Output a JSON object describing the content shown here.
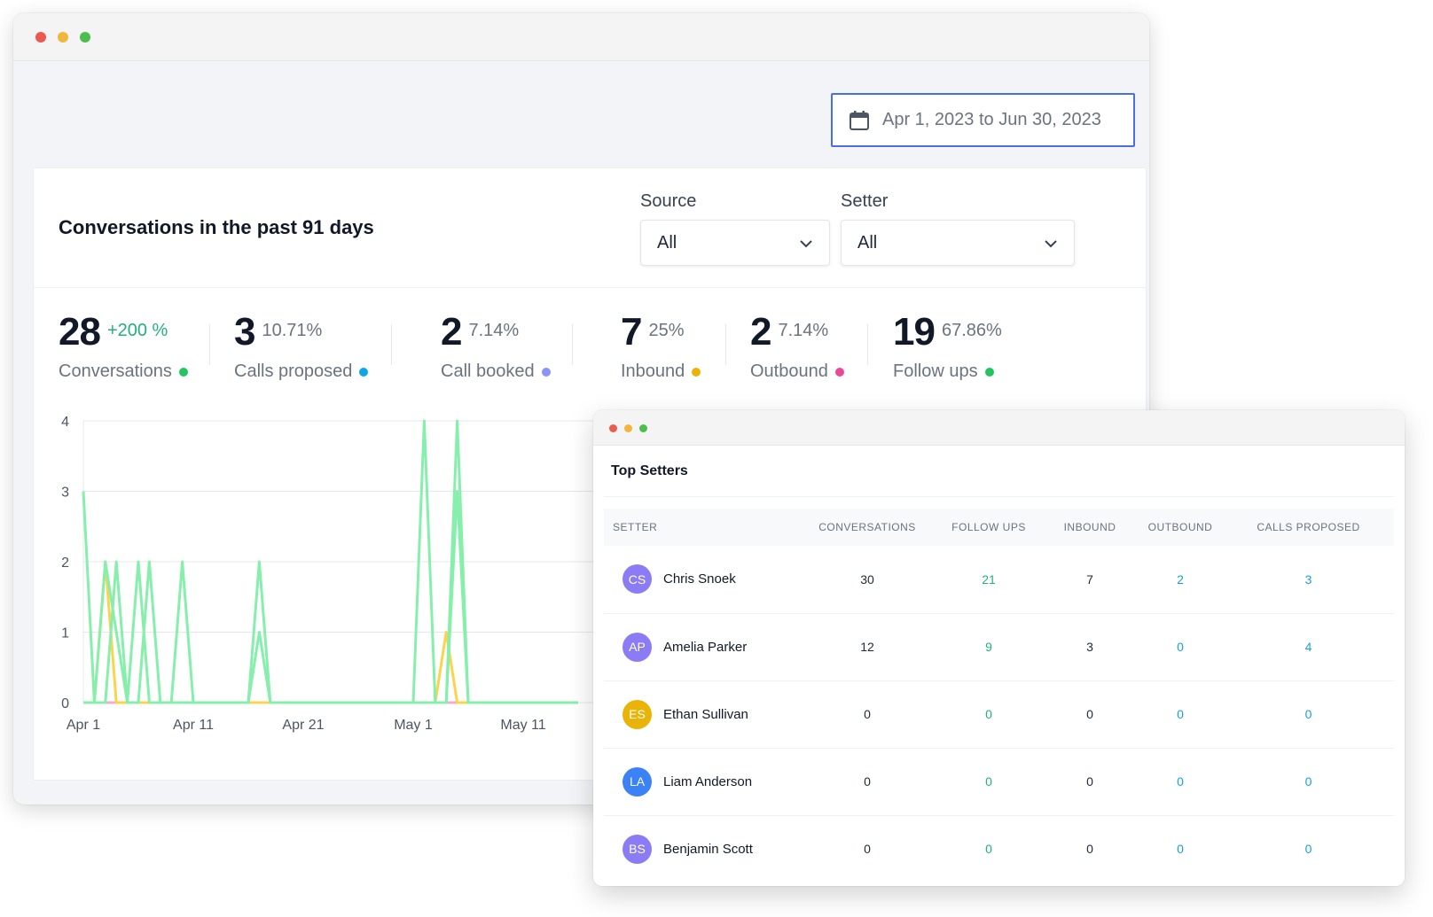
{
  "back_window": {
    "date_range": "Apr 1, 2023 to Jun 30, 2023",
    "card_title": "Conversations in the past 91 days",
    "filters": {
      "source_label": "Source",
      "source_value": "All",
      "setter_label": "Setter",
      "setter_value": "All"
    },
    "stats": [
      {
        "value": "28",
        "change": "+200 %",
        "label": "Conversations",
        "dot_color": "#22c55e"
      },
      {
        "value": "3",
        "change": "10.71%",
        "label": "Calls proposed",
        "dot_color": "#0ea5e9"
      },
      {
        "value": "2",
        "change": "7.14%",
        "label": "Call booked",
        "dot_color": "#8b93f8"
      },
      {
        "value": "7",
        "change": "25%",
        "label": "Inbound",
        "dot_color": "#eab308"
      },
      {
        "value": "2",
        "change": "7.14%",
        "label": "Outbound",
        "dot_color": "#ec4899"
      },
      {
        "value": "19",
        "change": "67.86%",
        "label": "Follow ups",
        "dot_color": "#22c55e"
      }
    ]
  },
  "chart_data": {
    "type": "line",
    "x_tick_labels": [
      "Apr 1",
      "Apr 11",
      "Apr 21",
      "May 1",
      "May 11"
    ],
    "y_ticks": [
      0,
      1,
      2,
      3,
      4
    ],
    "ylim": [
      0,
      4
    ],
    "grid": true,
    "series": [
      {
        "color": "#86efac",
        "points": [
          [
            0,
            3
          ],
          [
            1,
            0
          ],
          [
            2,
            2
          ],
          [
            3,
            1
          ],
          [
            4,
            0
          ],
          [
            5,
            2
          ],
          [
            6,
            0
          ],
          [
            7,
            0
          ],
          [
            8,
            0
          ],
          [
            9,
            2
          ],
          [
            10,
            0
          ],
          [
            15,
            0
          ],
          [
            16,
            1
          ],
          [
            17,
            0
          ],
          [
            18,
            0
          ],
          [
            30,
            0
          ],
          [
            31,
            4
          ],
          [
            32,
            0
          ],
          [
            33,
            0
          ],
          [
            34,
            4
          ],
          [
            35,
            0
          ],
          [
            45,
            0
          ]
        ]
      },
      {
        "color": "#86efac",
        "points": [
          [
            0,
            0
          ],
          [
            1,
            0
          ],
          [
            2,
            0
          ],
          [
            3,
            2
          ],
          [
            4,
            0
          ],
          [
            5,
            0
          ],
          [
            6,
            2
          ],
          [
            7,
            0
          ],
          [
            15,
            0
          ],
          [
            16,
            2
          ],
          [
            17,
            0
          ],
          [
            33,
            0
          ],
          [
            34,
            3
          ],
          [
            35,
            0
          ],
          [
            45,
            0
          ]
        ]
      },
      {
        "color": "#fcd34d",
        "points": [
          [
            0,
            0
          ],
          [
            1,
            0
          ],
          [
            2,
            2
          ],
          [
            3,
            0
          ],
          [
            30,
            0
          ],
          [
            32,
            0
          ],
          [
            33,
            1
          ],
          [
            34,
            0
          ],
          [
            45,
            0
          ]
        ]
      },
      {
        "color": "#f9a8d4",
        "points": [
          [
            0,
            0
          ],
          [
            45,
            0
          ]
        ]
      }
    ]
  },
  "front_window": {
    "title": "Top Setters",
    "columns": [
      "SETTER",
      "CONVERSATIONS",
      "FOLLOW UPS",
      "INBOUND",
      "OUTBOUND",
      "CALLS PROPOSED"
    ],
    "rows": [
      {
        "initials": "CS",
        "avatar_color": "#8b7cf6",
        "name": "Chris Snoek",
        "conversations": "30",
        "follow_ups": "21",
        "inbound": "7",
        "outbound": "2",
        "calls_proposed": "3"
      },
      {
        "initials": "AP",
        "avatar_color": "#8b7cf6",
        "name": "Amelia Parker",
        "conversations": "12",
        "follow_ups": "9",
        "inbound": "3",
        "outbound": "0",
        "calls_proposed": "4"
      },
      {
        "initials": "ES",
        "avatar_color": "#eab308",
        "name": "Ethan Sullivan",
        "conversations": "0",
        "follow_ups": "0",
        "inbound": "0",
        "outbound": "0",
        "calls_proposed": "0"
      },
      {
        "initials": "LA",
        "avatar_color": "#3b82f6",
        "name": "Liam Anderson",
        "conversations": "0",
        "follow_ups": "0",
        "inbound": "0",
        "outbound": "0",
        "calls_proposed": "0"
      },
      {
        "initials": "BS",
        "avatar_color": "#8b7cf6",
        "name": "Benjamin Scott",
        "conversations": "0",
        "follow_ups": "0",
        "inbound": "0",
        "outbound": "0",
        "calls_proposed": "0"
      }
    ]
  }
}
